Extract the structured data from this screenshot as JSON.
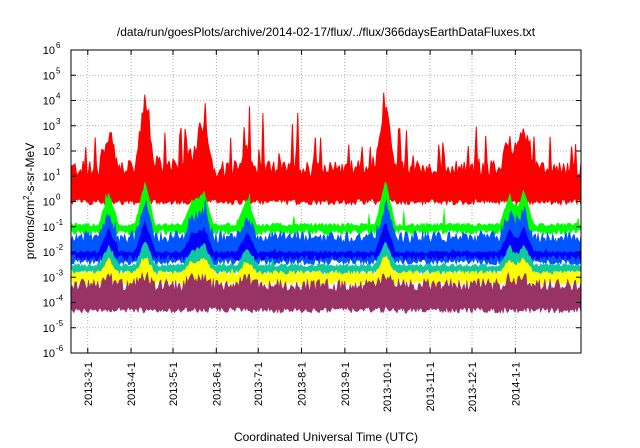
{
  "chart_data": {
    "type": "area",
    "title": "/data/run/goesPlots/archive/2014-02-17/flux/../flux/366daysEarthDataFluxes.txt",
    "xlabel": "Coordinated Universal Time (UTC)",
    "ylabel_parts": [
      "protons/cm",
      "2",
      "-s-sr-MeV"
    ],
    "x_range": [
      "2013-02-17",
      "2014-02-17"
    ],
    "y_scale": "log",
    "y_range": [
      1e-06,
      1000000.0
    ],
    "y_ticks": [
      {
        "base": "10",
        "exp": "6",
        "value": 1000000.0
      },
      {
        "base": "10",
        "exp": "5",
        "value": 100000.0
      },
      {
        "base": "10",
        "exp": "4",
        "value": 10000.0
      },
      {
        "base": "10",
        "exp": "3",
        "value": 1000.0
      },
      {
        "base": "10",
        "exp": "2",
        "value": 100.0
      },
      {
        "base": "10",
        "exp": "1",
        "value": 10.0
      },
      {
        "base": "10",
        "exp": "0",
        "value": 1.0
      },
      {
        "base": "10",
        "exp": "-1",
        "value": 0.1
      },
      {
        "base": "10",
        "exp": "-2",
        "value": 0.01
      },
      {
        "base": "10",
        "exp": "-3",
        "value": 0.001
      },
      {
        "base": "10",
        "exp": "-4",
        "value": 0.0001
      },
      {
        "base": "10",
        "exp": "-5",
        "value": 1e-05
      },
      {
        "base": "10",
        "exp": "-6",
        "value": 1e-06
      }
    ],
    "x_ticks": [
      {
        "label": "2013-3-1",
        "date": "2013-03-01"
      },
      {
        "label": "2013-4-1",
        "date": "2013-04-01"
      },
      {
        "label": "2013-5-1",
        "date": "2013-05-01"
      },
      {
        "label": "2013-6-1",
        "date": "2013-06-01"
      },
      {
        "label": "2013-7-1",
        "date": "2013-07-01"
      },
      {
        "label": "2013-8-1",
        "date": "2013-08-01"
      },
      {
        "label": "2013-9-1",
        "date": "2013-09-01"
      },
      {
        "label": "2013-10-1",
        "date": "2013-10-01"
      },
      {
        "label": "2013-11-1",
        "date": "2013-11-01"
      },
      {
        "label": "2013-12-1",
        "date": "2013-12-01"
      },
      {
        "label": "2014-1-1",
        "date": "2014-01-01"
      }
    ],
    "grid": true,
    "legend": "none",
    "series": [
      {
        "color": "#ff0000",
        "background": [
          1,
          20
        ],
        "spikiness": 1.0
      },
      {
        "color": "#00ff00",
        "background": [
          0.06,
          0.12
        ],
        "spikiness": 0.35
      },
      {
        "color": "#0055ff",
        "background": [
          0.004,
          0.04
        ],
        "spikiness": 0.25
      },
      {
        "color": "#0000ff",
        "background": [
          0.006,
          0.01
        ],
        "spikiness": 0.2
      },
      {
        "color": "#10c8a0",
        "background": [
          0.0015,
          0.003
        ],
        "spikiness": 0.15
      },
      {
        "color": "#ffff00",
        "background": [
          0.0006,
          0.0015
        ],
        "spikiness": 0.1
      },
      {
        "color": "#993366",
        "background": [
          5e-05,
          0.0005
        ],
        "spikiness": 0.05
      }
    ],
    "events": [
      {
        "date": "2013-03-16",
        "peak": 500.0
      },
      {
        "date": "2013-04-11",
        "peak": 10000.0
      },
      {
        "date": "2013-05-15",
        "peak": 100.0
      },
      {
        "date": "2013-05-23",
        "peak": 1000.0
      },
      {
        "date": "2013-06-23",
        "peak": 100.0
      },
      {
        "date": "2013-09-30",
        "peak": 10000.0
      },
      {
        "date": "2013-12-28",
        "peak": 300.0
      },
      {
        "date": "2014-01-07",
        "peak": 1000.0
      }
    ]
  }
}
